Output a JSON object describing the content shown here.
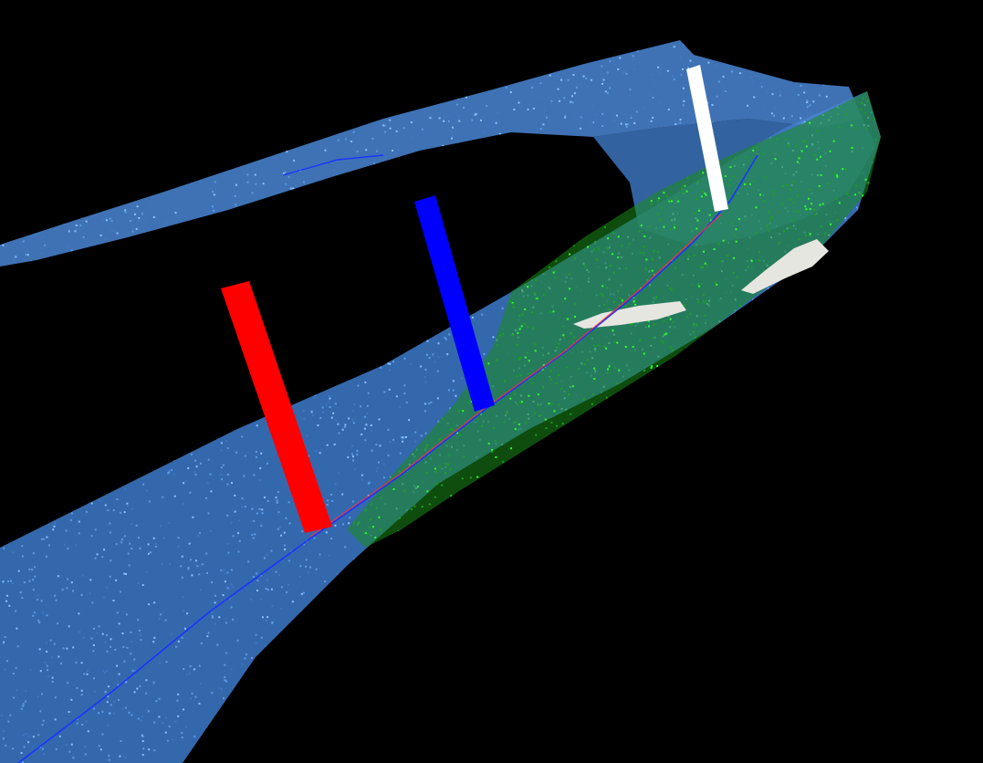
{
  "viewer": {
    "background_color": "#000000"
  },
  "scene": {
    "point_colors": {
      "terrain": "#5b9de6",
      "terrain_dark": "#3d78c4",
      "terrain_light": "#8cc3ff",
      "vegetation": "#1fa11f",
      "vegetation_bright": "#33ff33",
      "path_blue": "#1a33ff",
      "path_red": "#ff3333",
      "surface_patch": "#e6e6e0"
    },
    "markers": [
      {
        "name": "marker-red",
        "color": "#ff0000"
      },
      {
        "name": "marker-blue",
        "color": "#0000ff"
      },
      {
        "name": "marker-white",
        "color": "#ffffff"
      }
    ]
  }
}
